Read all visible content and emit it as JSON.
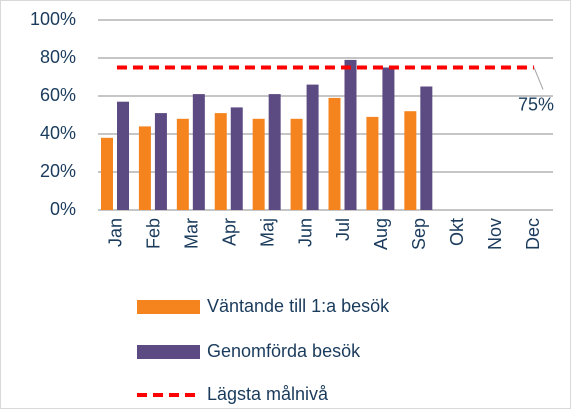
{
  "chart_data": {
    "type": "bar",
    "categories": [
      "Jan",
      "Feb",
      "Mar",
      "Apr",
      "Maj",
      "Jun",
      "Jul",
      "Aug",
      "Sep",
      "Okt",
      "Nov",
      "Dec"
    ],
    "series": [
      {
        "name": "Väntande till 1:a besök",
        "color": "#f5841f",
        "values": [
          38,
          44,
          48,
          51,
          48,
          48,
          59,
          49,
          52,
          null,
          null,
          null
        ]
      },
      {
        "name": "Genomförda besök",
        "color": "#5c4a82",
        "values": [
          57,
          51,
          61,
          54,
          61,
          66,
          79,
          75,
          65,
          null,
          null,
          null
        ]
      },
      {
        "name": "Lägsta målnivå",
        "color": "#ff0000",
        "type": "line",
        "dashed": true,
        "values": [
          75,
          75,
          75,
          75,
          75,
          75,
          75,
          75,
          75,
          75,
          75,
          75
        ],
        "value_labels": [
          null,
          null,
          null,
          null,
          null,
          null,
          null,
          null,
          null,
          null,
          null,
          "75%"
        ]
      }
    ],
    "ylim": [
      0,
      100
    ],
    "yticks": [
      {
        "value": 0,
        "label": "0%"
      },
      {
        "value": 20,
        "label": "20%"
      },
      {
        "value": 40,
        "label": "40%"
      },
      {
        "value": 60,
        "label": "60%"
      },
      {
        "value": 80,
        "label": "80%"
      },
      {
        "value": 100,
        "label": "100%"
      }
    ],
    "grid": true,
    "legend": "bottom"
  }
}
